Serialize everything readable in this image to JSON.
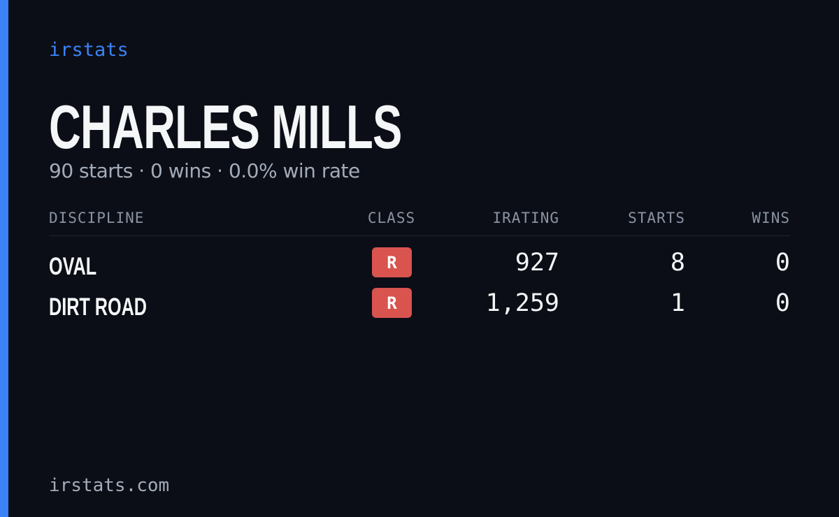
{
  "brand": "irstats",
  "driver": {
    "name": "CHARLES MILLS",
    "summary": "90 starts · 0 wins · 0.0% win rate"
  },
  "table": {
    "headers": [
      "DISCIPLINE",
      "CLASS",
      "IRATING",
      "STARTS",
      "WINS"
    ],
    "rows": [
      [
        "OVAL",
        "R",
        "927",
        "8",
        "0"
      ],
      [
        "DIRT ROAD",
        "R",
        "1,259",
        "1",
        "0"
      ]
    ]
  },
  "footer": "irstats.com"
}
